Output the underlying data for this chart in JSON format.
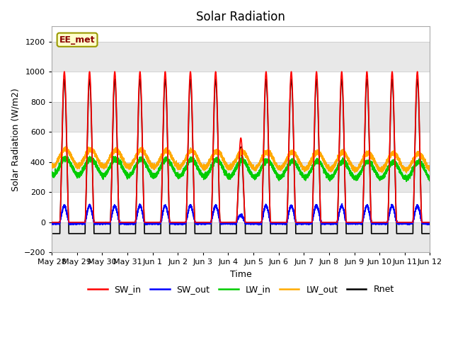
{
  "title": "Solar Radiation",
  "xlabel": "Time",
  "ylabel": "Solar Radiation (W/m2)",
  "ylim": [
    -200,
    1300
  ],
  "yticks": [
    -200,
    0,
    200,
    400,
    600,
    800,
    1000,
    1200
  ],
  "annotation_text": "EE_met",
  "background_color": "#ffffff",
  "plot_bg_light": "#ffffff",
  "plot_bg_dark": "#e8e8e8",
  "grid_color": "#cccccc",
  "series_colors": {
    "SW_in": "#ff0000",
    "SW_out": "#0000ff",
    "LW_in": "#00cc00",
    "LW_out": "#ffaa00",
    "Rnet": "#000000"
  },
  "x_tick_labels": [
    "May 28",
    "May 29",
    "May 30",
    "May 31",
    "Jun 1",
    "Jun 2",
    "Jun 3",
    "Jun 4",
    "Jun 5",
    "Jun 6",
    "Jun 7",
    "Jun 8",
    "Jun 9",
    "Jun 10",
    "Jun 11",
    "Jun 12"
  ]
}
